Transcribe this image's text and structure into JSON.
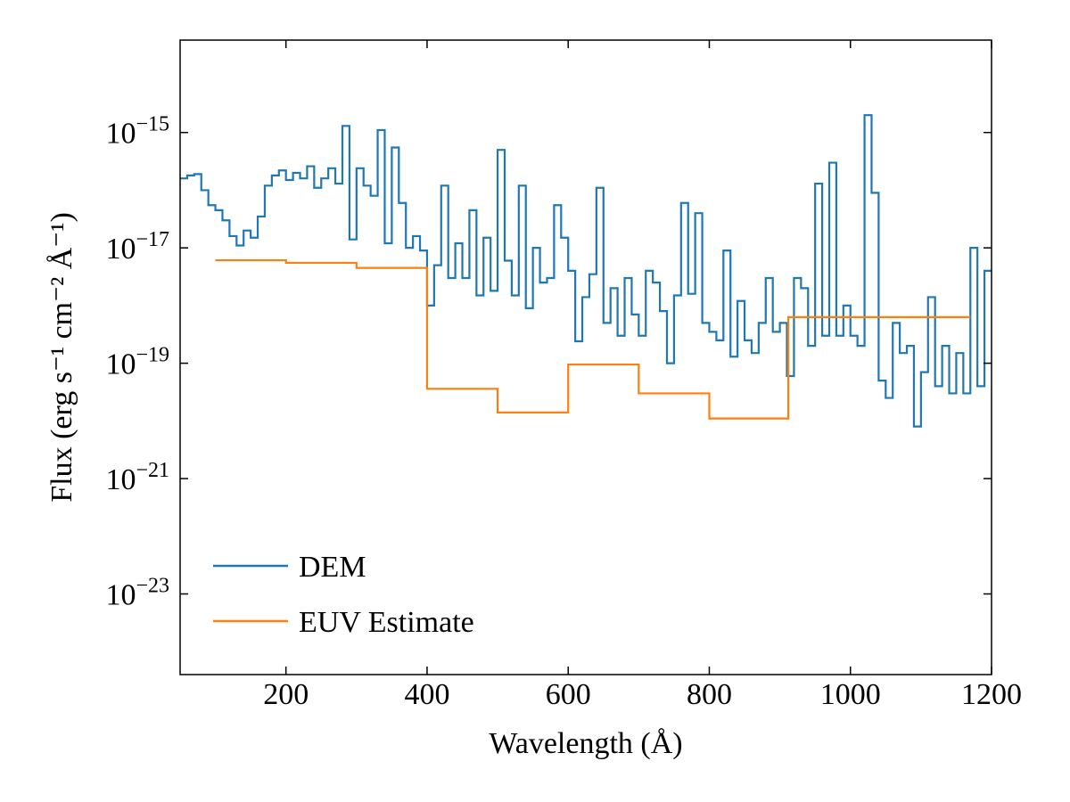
{
  "chart_data": {
    "type": "step",
    "xlabel": "Wavelength (Å)",
    "ylabel": "Flux (erg s⁻¹ cm⁻² Å⁻¹)",
    "xlim": [
      50,
      1200
    ],
    "ylim": [
      4e-25,
      4e-14
    ],
    "ylog": true,
    "xticks": [
      200,
      400,
      600,
      800,
      1000,
      1200
    ],
    "yticks": [
      {
        "value": 1e-15,
        "label": "10−15"
      },
      {
        "value": 1e-17,
        "label": "10−17"
      },
      {
        "value": 1e-19,
        "label": "10−19"
      },
      {
        "value": 1e-21,
        "label": "10−21"
      },
      {
        "value": 1e-23,
        "label": "10−23"
      }
    ],
    "legend": "lower left",
    "series": [
      {
        "name": "DEM",
        "color": "#1f77b4",
        "bins": [
          50,
          60,
          70,
          80,
          90,
          100,
          110,
          120,
          130,
          140,
          150,
          160,
          170,
          180,
          190,
          200,
          210,
          220,
          230,
          240,
          250,
          260,
          270,
          280,
          290,
          300,
          310,
          320,
          330,
          340,
          350,
          360,
          370,
          380,
          390,
          400,
          410,
          420,
          430,
          440,
          450,
          460,
          470,
          480,
          490,
          500,
          510,
          520,
          530,
          540,
          550,
          560,
          570,
          580,
          590,
          600,
          610,
          620,
          630,
          640,
          650,
          660,
          670,
          680,
          690,
          700,
          710,
          720,
          730,
          740,
          750,
          760,
          770,
          780,
          790,
          800,
          810,
          820,
          830,
          840,
          850,
          860,
          870,
          880,
          890,
          900,
          910,
          920,
          930,
          940,
          950,
          960,
          970,
          980,
          990,
          1000,
          1010,
          1020,
          1030,
          1040,
          1050,
          1060,
          1070,
          1080,
          1090,
          1100,
          1110,
          1120,
          1130,
          1140,
          1150,
          1160,
          1170,
          1180,
          1190,
          1200
        ],
        "values": [
          1.6e-16,
          1.8e-16,
          1.9e-16,
          1e-16,
          5.5e-17,
          4.5e-17,
          3e-17,
          1.6e-17,
          1.1e-17,
          2e-17,
          1.5e-17,
          3.5e-17,
          1.2e-16,
          1.8e-16,
          2.2e-16,
          1.5e-16,
          2e-16,
          1.6e-16,
          2.6e-16,
          1.1e-16,
          1.6e-16,
          2.4e-16,
          1.3e-16,
          1.3e-15,
          1.4e-17,
          2.4e-16,
          1.2e-16,
          8e-17,
          1.1e-15,
          1.2e-17,
          5.5e-16,
          6e-17,
          1e-17,
          1.6e-17,
          9e-18,
          1e-18,
          5e-18,
          1.2e-16,
          3e-18,
          1.2e-17,
          3e-18,
          4.5e-17,
          1.5e-18,
          1.5e-17,
          1.8e-18,
          5e-16,
          6e-18,
          1.5e-18,
          1.2e-16,
          9e-19,
          1e-17,
          2.5e-18,
          3e-18,
          5.5e-17,
          1.5e-17,
          4e-18,
          2.4e-19,
          1.4e-18,
          3.5e-18,
          1.1e-16,
          5e-19,
          2e-18,
          3e-19,
          3e-18,
          7e-19,
          3e-19,
          4e-18,
          2.5e-18,
          8e-19,
          1e-19,
          1.5e-18,
          6e-17,
          1.6e-18,
          4e-17,
          5e-19,
          3.5e-19,
          2.5e-19,
          9e-18,
          1.3e-19,
          1.2e-18,
          2.5e-19,
          1.5e-19,
          5e-19,
          3e-18,
          3.5e-19,
          5e-19,
          6e-20,
          3e-18,
          2e-18,
          2e-19,
          1.3e-16,
          3e-19,
          3e-16,
          3e-19,
          1e-18,
          3e-19,
          2e-19,
          2e-15,
          9e-17,
          5e-20,
          2.5e-20,
          5e-19,
          1.5e-19,
          2e-19,
          8e-21,
          7e-20,
          1.4e-18,
          4e-20,
          2e-19,
          3e-20,
          1.5e-19,
          3e-20,
          1e-17,
          4e-20,
          4e-18
        ]
      },
      {
        "name": "EUV Estimate",
        "color": "#ff7f0e",
        "bins": [
          100,
          200,
          300,
          400,
          500,
          600,
          700,
          800,
          912,
          1170
        ],
        "values": [
          6.1e-18,
          5.5e-18,
          4.5e-18,
          3.6e-20,
          1.4e-20,
          9.5e-20,
          3e-20,
          1.1e-20,
          6.3e-19
        ]
      }
    ]
  }
}
